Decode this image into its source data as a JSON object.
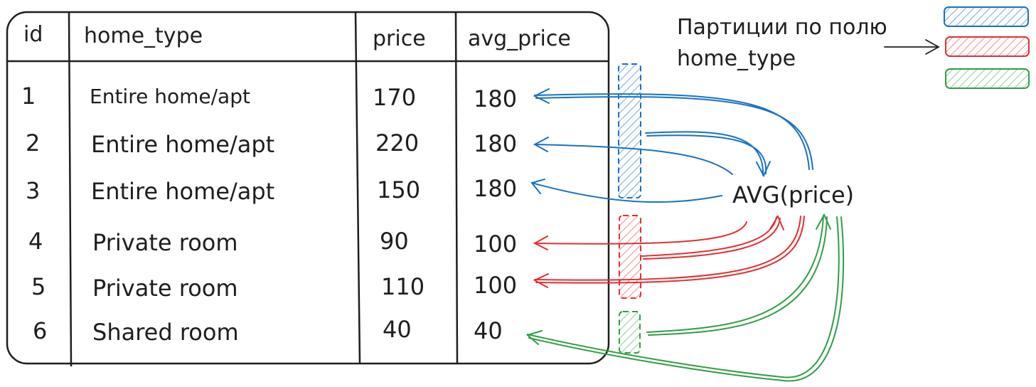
{
  "table": {
    "headers": {
      "id": "id",
      "home_type": "home_type",
      "price": "price",
      "avg_price": "avg_price"
    },
    "rows": [
      {
        "id": "1",
        "home_type": "Entire home/apt",
        "price": "170",
        "avg_price": "180"
      },
      {
        "id": "2",
        "home_type": "Entire home/apt",
        "price": "220",
        "avg_price": "180"
      },
      {
        "id": "3",
        "home_type": "Entire home/apt",
        "price": "150",
        "avg_price": "180"
      },
      {
        "id": "4",
        "home_type": "Private room",
        "price": "90",
        "avg_price": "100"
      },
      {
        "id": "5",
        "home_type": "Private room",
        "price": "110",
        "avg_price": "100"
      },
      {
        "id": "6",
        "home_type": "Shared room",
        "price": "40",
        "avg_price": "40"
      }
    ]
  },
  "formula": "AVG(price)",
  "legend": {
    "line1": "Партиции по полю",
    "line2": "home_type"
  },
  "colors": {
    "ink": "#1e1e1e",
    "partition_blue": "#1971c2",
    "partition_red": "#e03131",
    "partition_green": "#2f9e44"
  }
}
